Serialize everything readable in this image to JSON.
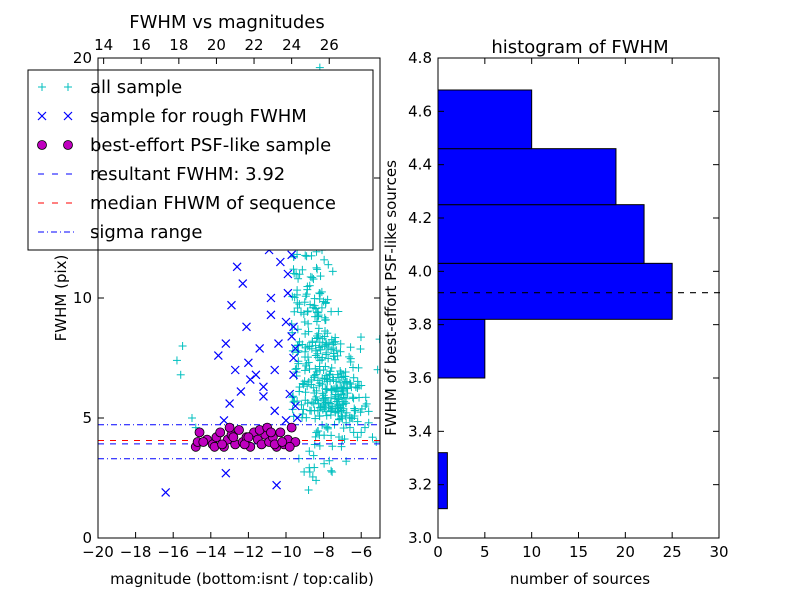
{
  "chart_data": [
    {
      "type": "scatter",
      "title": "FWHM vs magnitudes",
      "xlabel": "magnitude (bottom:isnt / top:calib)",
      "ylabel": "FWHM (pix)",
      "xlim": [
        -20,
        -5
      ],
      "ylim": [
        0,
        20
      ],
      "xticks": [
        -20,
        -18,
        -16,
        -14,
        -12,
        -10,
        -8,
        -6
      ],
      "xtick_labels": [
        "−20",
        "−18",
        "−16",
        "−14",
        "−12",
        "−10",
        "−8",
        "−6"
      ],
      "yticks": [
        0,
        5,
        10,
        15,
        20
      ],
      "ytick_labels": [
        "0",
        "5",
        "10",
        "15",
        "20"
      ],
      "top_xticks": [
        14,
        16,
        18,
        20,
        22,
        24,
        26
      ],
      "top_xtick_labels": [
        "14",
        "16",
        "18",
        "20",
        "22",
        "24",
        "26"
      ],
      "top_axis_offset": 33.7,
      "legend_position": "upper-left",
      "series": [
        {
          "name": "all sample",
          "marker": "+",
          "color": "#00bfbf",
          "x": [
            -15.6,
            -15.8,
            -15.5,
            -15.0,
            -14.8,
            -11.5,
            -11.0,
            -10.6,
            -10.3,
            -10.0,
            -9.8,
            -9.6,
            -9.4,
            -9.2,
            -9.0,
            -8.8,
            -8.6,
            -8.4,
            -8.2,
            -8.0,
            -7.8,
            -7.6,
            -7.4,
            -7.2,
            -7.0,
            -6.8,
            -6.6,
            -6.4,
            -6.2,
            -6.0,
            -5.8,
            -5.6,
            -5.4,
            -5.2,
            -8.4,
            -8.8,
            -8.2,
            -7.6,
            -6.8,
            -9.3,
            -8.5
          ],
          "y": [
            6.8,
            7.4,
            8.0,
            5.0,
            4.6,
            17.6,
            18.6,
            17.0,
            16.4,
            15.8,
            12.6,
            11.2,
            9.8,
            9.4,
            9.0,
            8.6,
            8.2,
            7.8,
            7.4,
            7.0,
            6.6,
            6.2,
            5.8,
            5.4,
            5.0,
            4.8,
            4.6,
            4.4,
            4.2,
            4.4,
            4.6,
            4.8,
            4.2,
            4.0,
            2.4,
            2.0,
            19.6,
            2.8,
            3.2,
            17.2,
            13.8
          ]
        },
        {
          "name": "sample for rough FWHM",
          "marker": "x",
          "color": "#0000ff",
          "x": [
            -16.4,
            -13.2,
            -12.6,
            -11.0,
            -10.2,
            -12.0,
            -11.6,
            -10.8,
            -10.4,
            -10.0,
            -9.9,
            -9.7,
            -9.6,
            -9.8,
            -9.5,
            -9.4,
            -11.2,
            -10.6,
            -13.0,
            -12.4,
            -13.6,
            -13.3,
            -10.9,
            -9.6
          ],
          "y": [
            1.9,
            2.7,
            11.3,
            13.1,
            12.2,
            7.3,
            6.8,
            9.3,
            8.1,
            9.0,
            10.2,
            8.4,
            7.5,
            6.0,
            5.5,
            5.0,
            6.3,
            7.0,
            5.6,
            6.1,
            7.6,
            4.9,
            12.0,
            8.8
          ],
          "extra_x": [
            -12.9,
            -12.1,
            -11.4,
            -10.3,
            -9.7,
            -9.9,
            -10.8,
            -13.2,
            -12.7,
            -11.9,
            -11.2,
            -10.6,
            -10.0,
            -9.6,
            -9.5,
            -12.3,
            -10.5
          ],
          "extra_y": [
            9.7,
            8.8,
            7.9,
            11.5,
            11.8,
            11.0,
            10.0,
            8.1,
            7.0,
            6.6,
            5.9,
            5.3,
            4.9,
            6.8,
            7.9,
            10.6,
            2.2
          ]
        },
        {
          "name": "best-effort PSF-like sample",
          "marker": "o",
          "color": "#bf00bf",
          "x": [
            -14.8,
            -14.6,
            -14.2,
            -13.9,
            -13.7,
            -13.5,
            -13.3,
            -13.1,
            -12.9,
            -12.7,
            -12.5,
            -12.3,
            -12.1,
            -11.9,
            -11.7,
            -11.5,
            -11.3,
            -11.1,
            -10.9,
            -10.7,
            -10.5,
            -10.3,
            -10.1,
            -9.9,
            -9.7,
            -9.5,
            -14.7,
            -13.8,
            -13.0,
            -12.2,
            -11.4,
            -10.6,
            -9.8,
            -14.4,
            -12.8,
            -11.0,
            -10.2,
            -13.4,
            -12.0,
            -10.8
          ],
          "y": [
            3.8,
            4.4,
            4.1,
            3.9,
            4.2,
            4.4,
            3.8,
            4.1,
            4.3,
            3.9,
            4.5,
            4.0,
            4.2,
            3.8,
            4.4,
            4.1,
            3.9,
            4.3,
            4.0,
            4.2,
            3.8,
            4.4,
            3.9,
            4.1,
            4.6,
            4.0,
            4.0,
            3.8,
            4.6,
            3.9,
            4.5,
            3.9,
            3.8,
            4.0,
            4.2,
            4.6,
            4.0,
            3.9,
            4.2,
            4.4
          ]
        }
      ],
      "cyan_cloud": {
        "x_center": -8.0,
        "x_spread": 1.6,
        "y_center": 5.0,
        "y_spread": 2.2,
        "count": 380,
        "x_min": -9.7,
        "x_max": -5.0
      },
      "lines": [
        {
          "name": "resultant FWHM: 3.92",
          "style": "dashed",
          "color": "#0000ff",
          "y": 3.92
        },
        {
          "name": "median FHWM of sequence",
          "style": "dashed",
          "color": "#ff0000",
          "y": 4.06
        },
        {
          "name": "sigma range",
          "style": "dashdot",
          "color": "#0000ff",
          "y": [
            4.72,
            3.3
          ]
        }
      ],
      "legend": [
        {
          "label": "all sample",
          "kind": "plus",
          "color": "#00bfbf"
        },
        {
          "label": "sample for rough FWHM",
          "kind": "x",
          "color": "#0000ff"
        },
        {
          "label": "best-effort PSF-like sample",
          "kind": "circle",
          "color": "#bf00bf"
        },
        {
          "label": "resultant FWHM: 3.92",
          "kind": "dashed",
          "color": "#0000ff"
        },
        {
          "label": "median FHWM of sequence",
          "kind": "dashed",
          "color": "#ff0000"
        },
        {
          "label": "sigma range",
          "kind": "dashdot",
          "color": "#0000ff"
        }
      ]
    },
    {
      "type": "bar",
      "orientation": "horizontal",
      "title": "histogram of FWHM",
      "xlabel": "number of sources",
      "ylabel": "FWHM of best-effort PSF-like sources",
      "xlim": [
        0,
        30
      ],
      "ylim": [
        3.0,
        4.8
      ],
      "xticks": [
        0,
        5,
        10,
        15,
        20,
        25,
        30
      ],
      "xtick_labels": [
        "0",
        "5",
        "10",
        "15",
        "20",
        "25",
        "30"
      ],
      "yticks": [
        3.0,
        3.2,
        3.4,
        3.6,
        3.8,
        4.0,
        4.2,
        4.4,
        4.6,
        4.8
      ],
      "ytick_labels": [
        "3.0",
        "3.2",
        "3.4",
        "3.6",
        "3.8",
        "4.0",
        "4.2",
        "4.4",
        "4.6",
        "4.8"
      ],
      "bar_color": "#0000ff",
      "bins": [
        {
          "y0": 3.11,
          "y1": 3.32,
          "count": 1
        },
        {
          "y0": 3.32,
          "y1": 3.6,
          "count": 0
        },
        {
          "y0": 3.6,
          "y1": 3.82,
          "count": 5
        },
        {
          "y0": 3.82,
          "y1": 4.03,
          "count": 25
        },
        {
          "y0": 4.03,
          "y1": 4.25,
          "count": 22
        },
        {
          "y0": 4.25,
          "y1": 4.46,
          "count": 19
        },
        {
          "y0": 4.46,
          "y1": 4.68,
          "count": 10
        }
      ],
      "reference_line": {
        "y": 3.92,
        "style": "dashed",
        "color": "#000000"
      }
    }
  ]
}
